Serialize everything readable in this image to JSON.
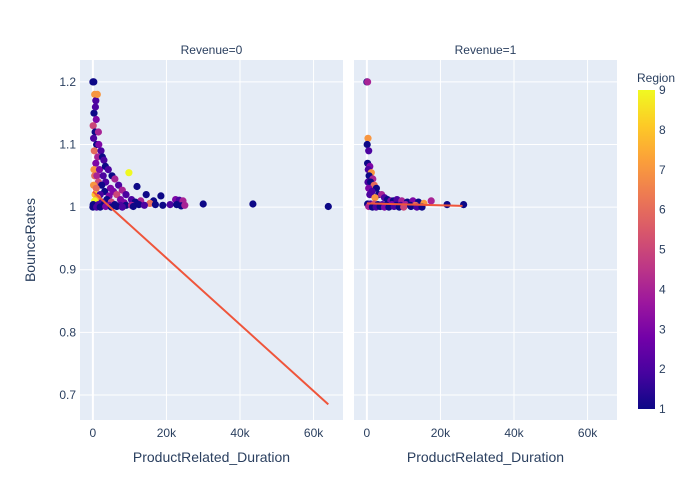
{
  "chart_data": {
    "type": "scatter",
    "facet_variable": "Revenue",
    "panels": [
      {
        "title": "Revenue=0",
        "points": [
          [
            0,
            1.2
          ],
          [
            250,
            1.2
          ],
          [
            500,
            1.18
          ],
          [
            800,
            1.17
          ],
          [
            1200,
            1.18
          ],
          [
            300,
            1.15
          ],
          [
            700,
            1.16
          ],
          [
            900,
            1.14
          ],
          [
            100,
            1.13
          ],
          [
            600,
            1.12
          ],
          [
            1500,
            1.12
          ],
          [
            200,
            1.11
          ],
          [
            1000,
            1.1
          ],
          [
            1600,
            1.1
          ],
          [
            400,
            1.09
          ],
          [
            2200,
            1.09
          ],
          [
            1300,
            1.08
          ],
          [
            2600,
            1.08
          ],
          [
            800,
            1.07
          ],
          [
            3000,
            1.075
          ],
          [
            300,
            1.06
          ],
          [
            1800,
            1.06
          ],
          [
            3400,
            1.065
          ],
          [
            4200,
            1.06
          ],
          [
            500,
            1.05
          ],
          [
            1100,
            1.05
          ],
          [
            2800,
            1.05
          ],
          [
            5200,
            1.05
          ],
          [
            9800,
            1.055
          ],
          [
            1500,
            1.04
          ],
          [
            3500,
            1.04
          ],
          [
            6000,
            1.045
          ],
          [
            200,
            1.035
          ],
          [
            2400,
            1.035
          ],
          [
            4800,
            1.03
          ],
          [
            7000,
            1.035
          ],
          [
            12000,
            1.033
          ],
          [
            900,
            1.03
          ],
          [
            3200,
            1.025
          ],
          [
            5600,
            1.025
          ],
          [
            8000,
            1.027
          ],
          [
            600,
            1.02
          ],
          [
            2000,
            1.02
          ],
          [
            4400,
            1.018
          ],
          [
            6500,
            1.02
          ],
          [
            9000,
            1.02
          ],
          [
            14500,
            1.02
          ],
          [
            18500,
            1.018
          ],
          [
            1200,
            1.015
          ],
          [
            3800,
            1.012
          ],
          [
            7500,
            1.012
          ],
          [
            10500,
            1.012
          ],
          [
            13000,
            1.01
          ],
          [
            16500,
            1.01
          ],
          [
            500,
            1.01
          ],
          [
            2500,
            1.008
          ],
          [
            5000,
            1.008
          ],
          [
            8500,
            1.007
          ],
          [
            11500,
            1.008
          ],
          [
            15500,
            1.006
          ],
          [
            22500,
            1.012
          ],
          [
            23500,
            1.011
          ],
          [
            24500,
            1.01
          ],
          [
            100,
            1.004
          ],
          [
            1500,
            1.004
          ],
          [
            3000,
            1.004
          ],
          [
            4500,
            1.003
          ],
          [
            6000,
            1.004
          ],
          [
            7500,
            1.003
          ],
          [
            9000,
            1.003
          ],
          [
            10500,
            1.003
          ],
          [
            12500,
            1.004
          ],
          [
            14000,
            1.003
          ],
          [
            17000,
            1.004
          ],
          [
            19000,
            1.003
          ],
          [
            21000,
            1.004
          ],
          [
            22800,
            1.004
          ],
          [
            24000,
            1.002
          ],
          [
            25000,
            1.003
          ],
          [
            30000,
            1.005
          ],
          [
            43500,
            1.005
          ],
          [
            64000,
            1.001
          ],
          [
            0,
            1.0
          ],
          [
            1000,
            1.0
          ],
          [
            2000,
            1.0
          ],
          [
            3500,
            1.001
          ],
          [
            5000,
            1.0
          ],
          [
            6500,
            1.001
          ],
          [
            8000,
            1.0
          ],
          [
            11000,
            1.001
          ]
        ],
        "colors": [
          1,
          1,
          7,
          2,
          7,
          1,
          2,
          3,
          5,
          1,
          4,
          2,
          1,
          3,
          6,
          2,
          4,
          1,
          3,
          2,
          7,
          3,
          1,
          2,
          6,
          4,
          2,
          1,
          9,
          5,
          2,
          4,
          7,
          1,
          3,
          2,
          1,
          6,
          1,
          3,
          4,
          8,
          2,
          3,
          5,
          2,
          1,
          1,
          7,
          1,
          3,
          2,
          4,
          1,
          9,
          2,
          5,
          3,
          1,
          6,
          3,
          2,
          4,
          1,
          2,
          1,
          3,
          1,
          2,
          1,
          4,
          1,
          2,
          1,
          1,
          2,
          1,
          1,
          4,
          1,
          1,
          1,
          1,
          2,
          1,
          3,
          1,
          1,
          2,
          1
        ],
        "trendline": {
          "x": [
            0,
            64000
          ],
          "y": [
            1.025,
            0.685
          ]
        }
      },
      {
        "title": "Revenue=1",
        "points": [
          [
            0,
            1.2
          ],
          [
            200,
            1.2
          ],
          [
            300,
            1.11
          ],
          [
            100,
            1.1
          ],
          [
            500,
            1.09
          ],
          [
            200,
            1.07
          ],
          [
            800,
            1.065
          ],
          [
            400,
            1.06
          ],
          [
            1200,
            1.055
          ],
          [
            600,
            1.05
          ],
          [
            1600,
            1.045
          ],
          [
            300,
            1.04
          ],
          [
            1000,
            1.04
          ],
          [
            2000,
            1.035
          ],
          [
            2600,
            1.03
          ],
          [
            500,
            1.03
          ],
          [
            1400,
            1.025
          ],
          [
            3200,
            1.02
          ],
          [
            4000,
            1.02
          ],
          [
            800,
            1.02
          ],
          [
            2200,
            1.015
          ],
          [
            4800,
            1.015
          ],
          [
            5600,
            1.012
          ],
          [
            6500,
            1.01
          ],
          [
            7200,
            1.01
          ],
          [
            8200,
            1.012
          ],
          [
            9500,
            1.01
          ],
          [
            11000,
            1.008
          ],
          [
            12500,
            1.01
          ],
          [
            14000,
            1.008
          ],
          [
            15500,
            1.006
          ],
          [
            17500,
            1.01
          ],
          [
            200,
            1.005
          ],
          [
            1000,
            1.005
          ],
          [
            2000,
            1.005
          ],
          [
            3000,
            1.004
          ],
          [
            4200,
            1.004
          ],
          [
            5400,
            1.003
          ],
          [
            6800,
            1.004
          ],
          [
            8000,
            1.003
          ],
          [
            9200,
            1.003
          ],
          [
            10500,
            1.004
          ],
          [
            11800,
            1.003
          ],
          [
            13200,
            1.003
          ],
          [
            21800,
            1.004
          ],
          [
            26300,
            1.004
          ],
          [
            500,
            1.001
          ],
          [
            1500,
            1.0
          ],
          [
            2500,
            1.0
          ],
          [
            3600,
            1.001
          ],
          [
            4800,
            1.0
          ],
          [
            6000,
            1.0
          ],
          [
            7400,
            1.001
          ],
          [
            8800,
            1.0
          ],
          [
            10000,
            1.0
          ],
          [
            12000,
            1.001
          ],
          [
            13600,
            1.0
          ],
          [
            15000,
            1.0
          ]
        ],
        "colors": [
          1,
          4,
          7,
          1,
          2,
          1,
          3,
          2,
          7,
          1,
          4,
          2,
          1,
          6,
          1,
          3,
          2,
          1,
          4,
          2,
          7,
          2,
          1,
          3,
          1,
          2,
          4,
          1,
          3,
          1,
          7,
          4,
          1,
          2,
          5,
          1,
          2,
          1,
          3,
          1,
          2,
          4,
          1,
          6,
          1,
          1,
          4,
          1,
          2,
          1,
          3,
          1,
          2,
          1,
          5,
          1,
          2,
          1
        ],
        "trendline": {
          "x": [
            0,
            26000
          ],
          "y": [
            1.006,
            1.002
          ]
        }
      }
    ],
    "xlabel": "ProductRelated_Duration",
    "ylabel": "BounceRates",
    "xlim": [
      -3500,
      68000
    ],
    "ylim": [
      0.66,
      1.235
    ],
    "x_ticks": [
      0,
      20000,
      40000,
      60000
    ],
    "x_tick_labels": [
      "0",
      "20k",
      "40k",
      "60k"
    ],
    "y_ticks": [
      0.7,
      0.8,
      0.9,
      1.0,
      1.1,
      1.2
    ],
    "y_tick_labels": [
      "0.7",
      "0.8",
      "0.9",
      "1",
      "1.1",
      "1.2"
    ],
    "colorbar": {
      "title": "Region",
      "min": 1,
      "max": 9,
      "ticks": [
        1,
        2,
        3,
        4,
        5,
        6,
        7,
        8,
        9
      ],
      "colorscale": [
        "#0d0887",
        "#46039f",
        "#7201a8",
        "#9c179e",
        "#bd3786",
        "#d8576b",
        "#ed7953",
        "#fb9f3a",
        "#fdca26",
        "#f0f921"
      ]
    },
    "trendline_color": "#ef553b",
    "plot_bg": "#e5ecf6",
    "grid": true,
    "legend": "right"
  }
}
